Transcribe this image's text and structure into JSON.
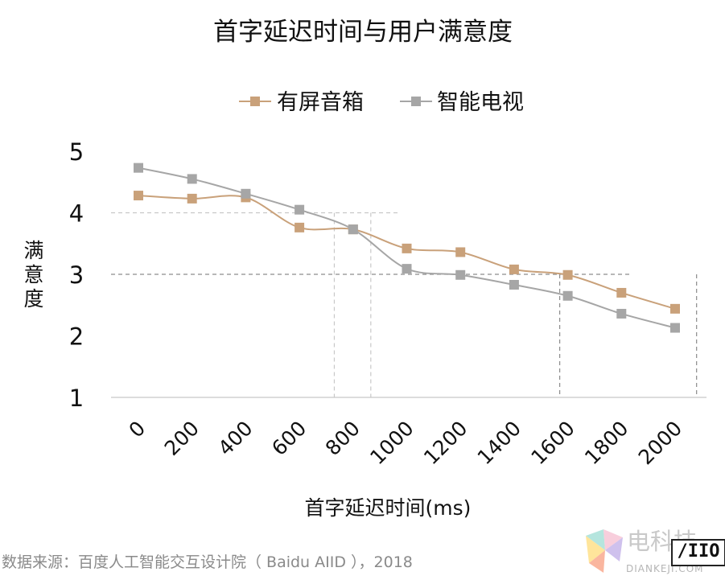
{
  "chart_data": {
    "type": "line",
    "title": "首字延迟时间与用户满意度",
    "xlabel": "首字延迟时间(ms)",
    "ylabel": "满意度",
    "ylim": [
      1,
      5
    ],
    "yticks": [
      "1",
      "2",
      "3",
      "4",
      "5"
    ],
    "categories": [
      "0",
      "200",
      "400",
      "600",
      "800",
      "1000",
      "1200",
      "1400",
      "1600",
      "1800",
      "2000"
    ],
    "legend_position": "top",
    "grid": false,
    "series": [
      {
        "name": "有屏音箱",
        "color": "#c9a17a",
        "values": [
          4.28,
          4.23,
          4.25,
          3.76,
          3.73,
          3.42,
          3.36,
          3.08,
          2.99,
          2.7,
          2.44
        ]
      },
      {
        "name": "智能电视",
        "color": "#a6a6a6",
        "values": [
          4.73,
          4.55,
          4.31,
          4.05,
          3.73,
          3.09,
          2.99,
          2.83,
          2.65,
          2.36,
          2.13
        ]
      }
    ],
    "annotations": [
      {
        "type": "hline",
        "y": 4,
        "x_end": 4.88,
        "style": "dashed-light"
      },
      {
        "type": "vline",
        "x": 3.65,
        "y_end": 4,
        "style": "dashed-light"
      },
      {
        "type": "vline",
        "x": 4.33,
        "y_end": 4,
        "style": "dashed-light"
      },
      {
        "type": "hline",
        "y": 3,
        "x_end": 9.2,
        "style": "dashed-dark"
      },
      {
        "type": "vline",
        "x": 7.85,
        "y_end": 3,
        "style": "dashed-dark"
      },
      {
        "type": "vline",
        "x": 10.4,
        "y_end": 3,
        "style": "dashed-dark"
      }
    ]
  },
  "footer": {
    "source": "数据来源：百度人工智能交互设计院（ Baidu AIID ），2018"
  },
  "watermark": {
    "brand": "电科技",
    "domain": "DIANKEJI.COM",
    "badge": "/IIO"
  }
}
